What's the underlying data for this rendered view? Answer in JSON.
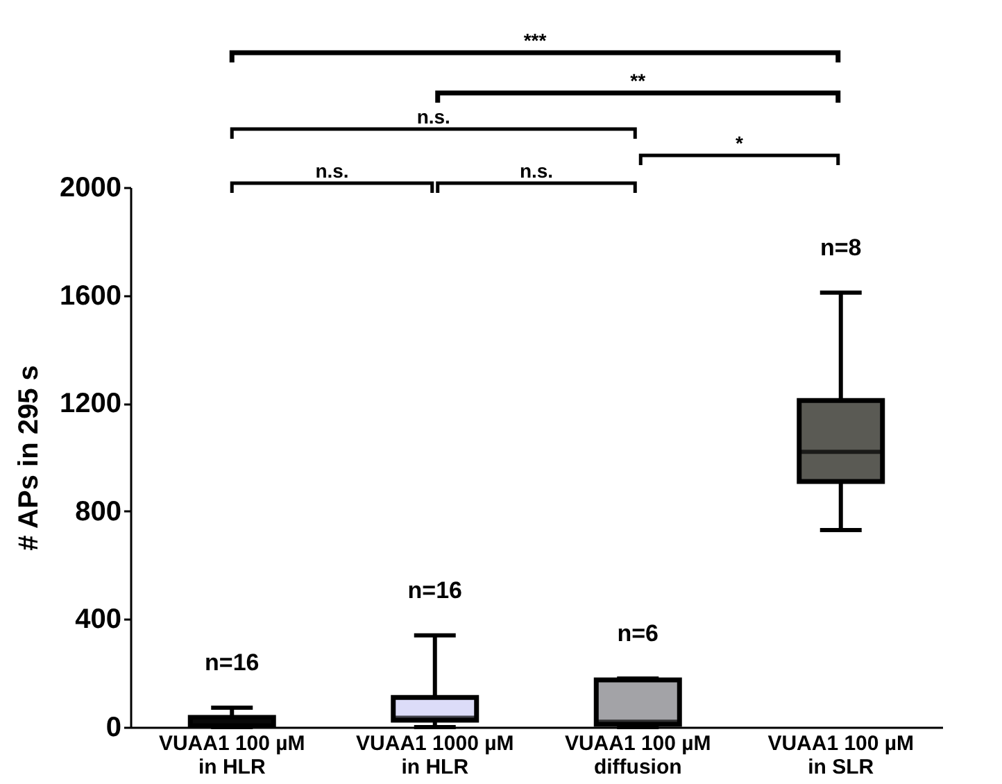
{
  "chart_data": {
    "type": "box",
    "ylabel": "# APs in 295 s",
    "categories": [
      "VUAA1 100 µM\nin HLR",
      "VUAA1 1000 µM\nin HLR",
      "VUAA1 100 µM\ndiffusion",
      "VUAA1 100 µM\nin SLR"
    ],
    "colors": [
      "#202020",
      "#dcdcf8",
      "#a3a3a7",
      "#5a5a54"
    ],
    "boxes": [
      {
        "low": 0,
        "q1": 5,
        "median": 20,
        "q3": 36,
        "high": 72
      },
      {
        "low": 0,
        "q1": 26,
        "median": 35,
        "q3": 110,
        "high": 340
      },
      {
        "low": 0,
        "q1": 10,
        "median": 20,
        "q3": 175,
        "high": 180
      },
      {
        "low": 730,
        "q1": 910,
        "median": 1020,
        "q3": 1210,
        "high": 1610
      }
    ],
    "ylim": [
      0,
      2000
    ],
    "yticks": [
      0,
      400,
      800,
      1200,
      1600,
      2000
    ],
    "grid": false,
    "annotations": [
      "n=16",
      "n=16",
      "n=6",
      "n=8",
      "***",
      "**",
      "n.s.",
      "n.s.",
      "n.s.",
      "*"
    ]
  }
}
